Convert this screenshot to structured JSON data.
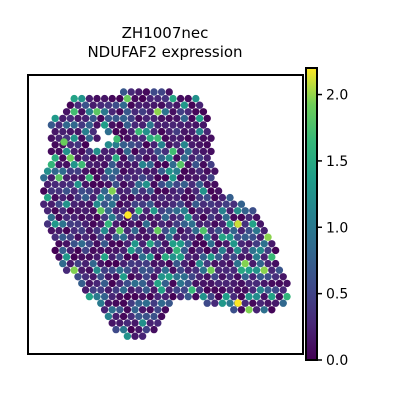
{
  "chart_data": {
    "type": "scatter",
    "plot_kind": "spatial spot map (hexagonal Visium-like spots)",
    "title": "ZH1007nec\nNDUFAF2 expression",
    "title_lines": [
      "ZH1007nec",
      "NDUFAF2 expression"
    ],
    "xlabel": "",
    "ylabel": "",
    "axes_ticks_visible": false,
    "grid": false,
    "colormap": "viridis",
    "colorbar": {
      "position": "right",
      "range": [
        0.0,
        2.2
      ],
      "ticks": [
        0.0,
        0.5,
        1.0,
        1.5,
        2.0
      ],
      "tick_labels": [
        "0.0",
        "0.5",
        "1.0",
        "1.5",
        "2.0"
      ]
    },
    "value_summary": {
      "min": 0.0,
      "max": 2.2,
      "typical_range": [
        0.0,
        1.2
      ],
      "dominant_value": 0.1,
      "high_value_spots": [
        {
          "region": "upper-left of tissue",
          "value": 1.9
        },
        {
          "region": "top center",
          "value": 1.7
        },
        {
          "region": "center",
          "value": 2.2
        },
        {
          "region": "right lobe",
          "value": 2.1
        },
        {
          "region": "lower right",
          "value": 2.2
        }
      ]
    },
    "tissue_shape": "irregular blob, wide upper-left region with a lower-right lobe; sparse holes near the top-left"
  }
}
